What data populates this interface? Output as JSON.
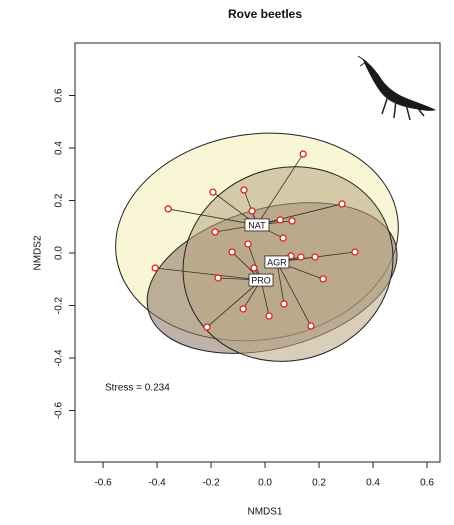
{
  "chart_data": {
    "type": "scatter",
    "title": "Rove beetles",
    "x_label": "NMDS1",
    "y_label": "NMDS2",
    "annotation": "Stress = 0.234",
    "xlim": [
      -0.704,
      0.648
    ],
    "ylim": [
      -0.796,
      0.8
    ],
    "xticks": [
      -0.6,
      -0.4,
      -0.2,
      {
        "value": 0,
        "label": "0.0"
      },
      0.2,
      0.4,
      0.6
    ],
    "yticks": [
      -0.6,
      -0.4,
      -0.2,
      {
        "value": 0,
        "label": "0.0"
      },
      0.2,
      0.4,
      0.6
    ],
    "groups": [
      {
        "name": "NAT",
        "color": "#f4eeb4",
        "centroid": [
          -0.03,
          0.107
        ],
        "ellipse": {
          "center": [
            -0.03,
            0.061
          ],
          "radii": [
            0.526,
            0.392
          ],
          "angle": -8
        }
      },
      {
        "name": "PRO",
        "color": "#8a7262",
        "centroid": [
          -0.015,
          -0.103
        ],
        "ellipse": {
          "center": [
            0.026,
            -0.095
          ],
          "radii": [
            0.474,
            0.267
          ],
          "angle": -15
        }
      },
      {
        "name": "AGR",
        "color": "#b8a582",
        "centroid": [
          0.044,
          -0.034
        ],
        "ellipse": {
          "center": [
            0.085,
            -0.042
          ],
          "radii": [
            0.393,
            0.366
          ],
          "angle": -20
        }
      }
    ],
    "points": {
      "x": [
        0.141,
        -0.359,
        -0.193,
        -0.078,
        -0.048,
        0.285,
        -0.185,
        0.056,
        0.1,
        0.067,
        0.333,
        0.215,
        0.185,
        0.133,
        0.096,
        0.17,
        0.07,
        -0.407,
        -0.215,
        -0.174,
        -0.081,
        0.015,
        -0.041,
        -0.063,
        -0.122
      ],
      "y": [
        0.377,
        0.168,
        0.232,
        0.24,
        0.16,
        0.187,
        0.08,
        0.126,
        0.122,
        0.057,
        0.004,
        -0.099,
        -0.015,
        -0.015,
        -0.011,
        -0.278,
        -0.194,
        -0.057,
        -0.282,
        -0.095,
        -0.213,
        -0.24,
        -0.057,
        0.034,
        0.004
      ],
      "group": [
        0,
        0,
        0,
        0,
        0,
        0,
        0,
        0,
        0,
        0,
        2,
        2,
        2,
        2,
        2,
        2,
        2,
        1,
        1,
        1,
        1,
        1,
        1,
        1,
        1
      ]
    }
  }
}
